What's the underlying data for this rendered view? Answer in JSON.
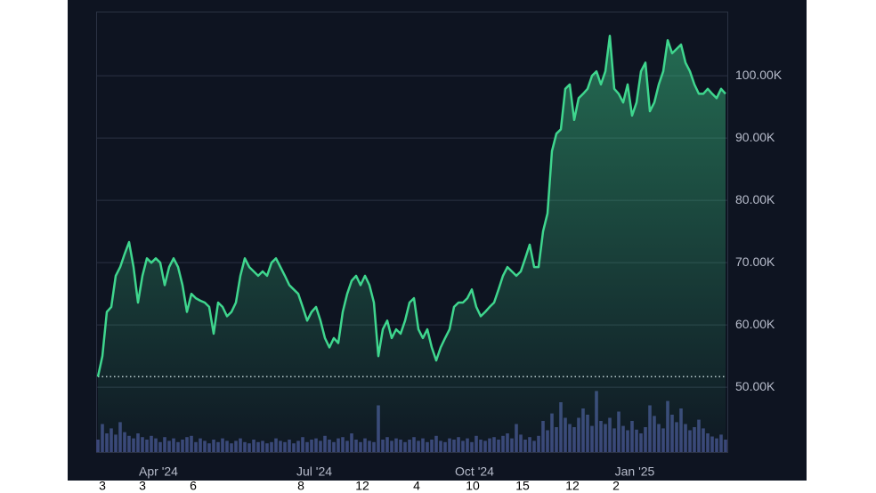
{
  "chart_data": {
    "type": "area",
    "categories": [
      null,
      null,
      null,
      null,
      null,
      null,
      null,
      null,
      null,
      null,
      null,
      null,
      null,
      null,
      "Apr '24",
      null,
      null,
      null,
      null,
      null,
      null,
      null,
      null,
      null,
      null,
      null,
      null,
      null,
      null,
      null,
      null,
      null,
      null,
      null,
      null,
      null,
      null,
      null,
      null,
      null,
      null,
      null,
      null,
      null,
      null,
      null,
      null,
      null,
      null,
      "Jul '24",
      null,
      null,
      null,
      null,
      null,
      null,
      null,
      null,
      null,
      null,
      null,
      null,
      null,
      null,
      null,
      null,
      null,
      null,
      null,
      null,
      null,
      null,
      null,
      null,
      null,
      null,
      null,
      null,
      null,
      null,
      null,
      null,
      null,
      null,
      null,
      "Oct '24",
      null,
      null,
      null,
      null,
      null,
      null,
      null,
      null,
      null,
      null,
      null,
      null,
      null,
      null,
      null,
      null,
      null,
      null,
      null,
      null,
      null,
      null,
      null,
      null,
      null,
      null,
      null,
      null,
      null,
      null,
      null,
      null,
      null,
      null,
      null,
      "Jan '25",
      null,
      null,
      null,
      null,
      null,
      null,
      null,
      null,
      null,
      null,
      null,
      null,
      null,
      null,
      null,
      null,
      null,
      null,
      null,
      null
    ],
    "values": [
      51700,
      55000,
      62100,
      62900,
      67900,
      69300,
      71400,
      73300,
      69300,
      63600,
      67900,
      70700,
      70000,
      70700,
      70000,
      66400,
      69300,
      70700,
      69300,
      66400,
      62100,
      65000,
      64300,
      63900,
      63600,
      62900,
      58600,
      63600,
      62900,
      61400,
      62100,
      63600,
      67900,
      70700,
      69300,
      68600,
      67900,
      68600,
      67900,
      70000,
      70700,
      69300,
      67900,
      66400,
      65700,
      65000,
      62900,
      60700,
      62100,
      62900,
      60700,
      57900,
      56400,
      57900,
      57100,
      62100,
      65000,
      67100,
      67900,
      66400,
      67900,
      66400,
      63600,
      55000,
      59300,
      60700,
      57900,
      59300,
      58600,
      60700,
      63600,
      64300,
      59300,
      57900,
      59300,
      56400,
      54300,
      56400,
      57900,
      59300,
      62900,
      63600,
      63600,
      64300,
      65700,
      62900,
      61400,
      62100,
      62900,
      63600,
      65700,
      67900,
      69300,
      68600,
      67900,
      68600,
      70700,
      72900,
      69300,
      69300,
      75000,
      77900,
      87900,
      90700,
      91400,
      97900,
      98600,
      92900,
      96400,
      97100,
      97900,
      100000,
      100700,
      98600,
      100700,
      106400,
      97900,
      97100,
      95700,
      98600,
      93600,
      95700,
      100700,
      102100,
      94300,
      95700,
      98600,
      100700,
      105700,
      103600,
      104300,
      105000,
      102100,
      100700,
      98600,
      97100,
      97100,
      97900,
      97100,
      96400,
      97900,
      97100
    ],
    "color": "#3fd68e",
    "volume": [
      20,
      45,
      30,
      38,
      28,
      48,
      32,
      26,
      22,
      30,
      24,
      20,
      26,
      22,
      16,
      24,
      18,
      22,
      16,
      20,
      24,
      26,
      16,
      22,
      18,
      14,
      20,
      16,
      22,
      18,
      14,
      18,
      22,
      16,
      14,
      20,
      16,
      18,
      14,
      16,
      22,
      18,
      16,
      20,
      14,
      18,
      24,
      16,
      20,
      22,
      18,
      26,
      20,
      16,
      22,
      24,
      18,
      30,
      20,
      16,
      22,
      18,
      16,
      75,
      20,
      24,
      18,
      22,
      20,
      16,
      20,
      24,
      18,
      22,
      16,
      20,
      26,
      18,
      16,
      22,
      20,
      24,
      18,
      22,
      16,
      26,
      20,
      18,
      22,
      24,
      20,
      26,
      30,
      22,
      45,
      28,
      20,
      24,
      18,
      26,
      50,
      35,
      62,
      40,
      80,
      55,
      45,
      40,
      55,
      70,
      60,
      42,
      98,
      50,
      45,
      55,
      38,
      65,
      42,
      35,
      50,
      36,
      30,
      40,
      75,
      58,
      45,
      38,
      82,
      60,
      48,
      70,
      45,
      35,
      40,
      52,
      38,
      30,
      25,
      22,
      28,
      20
    ],
    "volume_color": "#3a4578",
    "volume_ylim": [
      0,
      100
    ],
    "ylim": [
      39600,
      110300
    ],
    "yticks": [
      {
        "value": 50000,
        "label": "50.00K"
      },
      {
        "value": 60000,
        "label": "60.00K"
      },
      {
        "value": 70000,
        "label": "70.00K"
      },
      {
        "value": 80000,
        "label": "80.00K"
      },
      {
        "value": 90000,
        "label": "90.00K"
      },
      {
        "value": 100000,
        "label": "100.00K"
      }
    ],
    "grid": true,
    "footer_labels": [
      "3",
      "3",
      "6",
      "8",
      "12",
      "4",
      "10",
      "15",
      "12",
      "2"
    ]
  }
}
